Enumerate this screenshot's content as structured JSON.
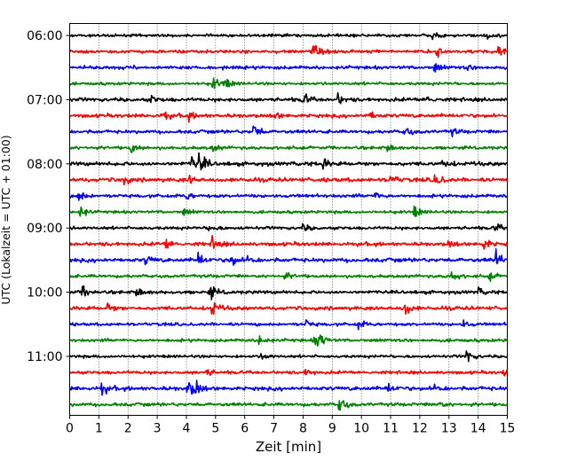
{
  "chart_data": {
    "type": "line",
    "subtype": "helicorder",
    "title": "",
    "xlabel": "Zeit  [min]",
    "ylabel": "UTC (Lokalzeit = UTC + 01:00)",
    "xlim": [
      0,
      15
    ],
    "x_ticks": [
      "0",
      "1",
      "2",
      "3",
      "4",
      "5",
      "6",
      "7",
      "8",
      "9",
      "10",
      "11",
      "12",
      "13",
      "14",
      "15"
    ],
    "y_tick_labels": [
      "06:00",
      "07:00",
      "08:00",
      "09:00",
      "10:00",
      "11:00"
    ],
    "line_interval_min": 15,
    "grid": "vertical dotted",
    "color_cycle": [
      "#000000",
      "#ff0000",
      "#0000ff",
      "#008000"
    ],
    "traces": [
      {
        "start": "06:00",
        "noise": 1.0,
        "events": [
          [
            12.4,
            3
          ],
          [
            14.3,
            3
          ]
        ]
      },
      {
        "start": "06:15",
        "noise": 1.2,
        "events": [
          [
            8.35,
            7
          ],
          [
            12.6,
            4
          ],
          [
            14.7,
            5
          ]
        ]
      },
      {
        "start": "06:30",
        "noise": 1.2,
        "events": [
          [
            12.5,
            4
          ],
          [
            13.6,
            2
          ]
        ]
      },
      {
        "start": "06:45",
        "noise": 1.0,
        "events": [
          [
            4.9,
            5
          ],
          [
            5.3,
            5
          ]
        ]
      },
      {
        "start": "07:00",
        "noise": 1.3,
        "events": [
          [
            2.8,
            3
          ],
          [
            8.0,
            5
          ],
          [
            9.2,
            4
          ],
          [
            12.2,
            4
          ]
        ]
      },
      {
        "start": "07:15",
        "noise": 1.3,
        "events": [
          [
            3.2,
            4
          ],
          [
            4.1,
            3
          ],
          [
            7.0,
            3
          ],
          [
            10.3,
            3
          ]
        ]
      },
      {
        "start": "07:30",
        "noise": 1.2,
        "events": [
          [
            6.3,
            7
          ],
          [
            11.5,
            4
          ],
          [
            13.1,
            3
          ]
        ]
      },
      {
        "start": "07:45",
        "noise": 1.1,
        "events": [
          [
            2.1,
            5
          ],
          [
            4.9,
            3
          ],
          [
            10.9,
            4
          ]
        ]
      },
      {
        "start": "08:00",
        "noise": 1.4,
        "events": [
          [
            4.2,
            6
          ],
          [
            4.45,
            8
          ],
          [
            8.7,
            4
          ],
          [
            12.8,
            4
          ]
        ]
      },
      {
        "start": "08:15",
        "noise": 1.4,
        "events": [
          [
            1.8,
            6
          ],
          [
            4.1,
            4
          ],
          [
            11.0,
            4
          ],
          [
            12.5,
            6
          ]
        ]
      },
      {
        "start": "08:30",
        "noise": 1.2,
        "events": [
          [
            0.3,
            5
          ],
          [
            4.0,
            3
          ],
          [
            10.5,
            3
          ]
        ]
      },
      {
        "start": "08:45",
        "noise": 1.0,
        "events": [
          [
            0.35,
            6
          ],
          [
            3.9,
            3
          ],
          [
            11.8,
            5
          ]
        ]
      },
      {
        "start": "09:00",
        "noise": 1.1,
        "events": [
          [
            4.8,
            4
          ],
          [
            8.0,
            3
          ],
          [
            14.6,
            4
          ]
        ]
      },
      {
        "start": "09:15",
        "noise": 1.3,
        "events": [
          [
            3.3,
            5
          ],
          [
            4.9,
            6
          ],
          [
            13.0,
            3
          ],
          [
            14.2,
            5
          ]
        ]
      },
      {
        "start": "09:30",
        "noise": 1.4,
        "events": [
          [
            2.6,
            4
          ],
          [
            4.4,
            6
          ],
          [
            5.5,
            6
          ],
          [
            6.1,
            4
          ],
          [
            14.6,
            7
          ]
        ]
      },
      {
        "start": "09:45",
        "noise": 1.1,
        "events": [
          [
            7.4,
            3
          ],
          [
            13.05,
            6
          ],
          [
            14.4,
            3
          ]
        ]
      },
      {
        "start": "10:00",
        "noise": 1.2,
        "events": [
          [
            0.45,
            5
          ],
          [
            2.3,
            5
          ],
          [
            4.8,
            6
          ],
          [
            14.0,
            3
          ]
        ]
      },
      {
        "start": "10:15",
        "noise": 1.3,
        "events": [
          [
            1.3,
            4
          ],
          [
            4.85,
            7
          ],
          [
            11.5,
            6
          ]
        ]
      },
      {
        "start": "10:30",
        "noise": 1.1,
        "events": [
          [
            8.1,
            3
          ],
          [
            9.9,
            4
          ],
          [
            13.5,
            3
          ]
        ]
      },
      {
        "start": "10:45",
        "noise": 1.1,
        "events": [
          [
            6.5,
            5
          ],
          [
            8.4,
            6
          ],
          [
            8.55,
            5
          ]
        ]
      },
      {
        "start": "11:00",
        "noise": 1.0,
        "events": [
          [
            6.6,
            3
          ],
          [
            13.6,
            6
          ]
        ]
      },
      {
        "start": "11:15",
        "noise": 1.1,
        "events": [
          [
            4.7,
            3
          ],
          [
            8.1,
            3
          ],
          [
            14.9,
            3
          ]
        ]
      },
      {
        "start": "11:30",
        "noise": 1.4,
        "events": [
          [
            1.1,
            5
          ],
          [
            4.05,
            8
          ],
          [
            4.3,
            6
          ],
          [
            10.9,
            4
          ],
          [
            12.5,
            4
          ]
        ]
      },
      {
        "start": "11:45",
        "noise": 1.2,
        "events": [
          [
            9.25,
            7
          ],
          [
            12.6,
            3
          ]
        ]
      }
    ]
  }
}
